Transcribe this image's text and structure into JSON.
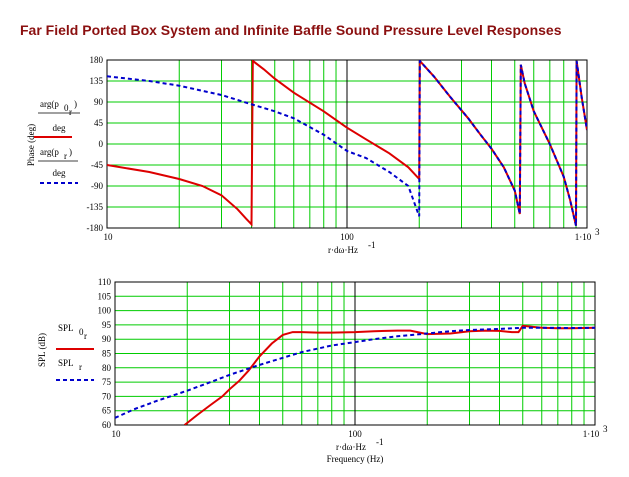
{
  "title": "Far Field Ported Box System and Infinite Baffle Sound Pressure Level Responses",
  "chart_data": [
    {
      "type": "line",
      "title": "Far Field Ported Box System and Infinite Baffle Sound Pressure Level Responses",
      "xscale": "log",
      "xlim": [
        10,
        1000
      ],
      "ylim": [
        -180,
        180
      ],
      "xtick_labels": [
        "10",
        "100",
        "1·10"
      ],
      "xtick_exponent": "3",
      "ytick_labels": [
        "180",
        "135",
        "90",
        "45",
        "0",
        "-45",
        "-90",
        "-135",
        "-180"
      ],
      "yticks": [
        180,
        135,
        90,
        45,
        0,
        -45,
        -90,
        -135,
        -180
      ],
      "ylabel": "Phase (deg)",
      "xlabel": "r·dω·Hz",
      "xlabel_exponent": "-1",
      "grid": true,
      "legend": {
        "entry1": {
          "num": "arg(p",
          "sub": "0",
          "subsub": "r",
          "num_close": ")",
          "den": "deg"
        },
        "entry2": {
          "num": "arg(p",
          "sub": "r",
          "num_close": ")",
          "den": "deg"
        }
      },
      "series": [
        {
          "label": "arg(p0r)/deg",
          "color": "#dd0000",
          "style": "solid",
          "x": [
            10,
            15,
            20,
            25,
            30,
            35,
            38,
            40,
            40.5,
            45,
            50,
            60,
            80,
            100,
            120,
            150,
            180,
            200,
            201,
            230,
            270,
            320,
            360,
            400,
            450,
            500,
            525,
            530,
            550,
            600,
            700,
            800,
            850,
            900,
            905,
            950,
            1000
          ],
          "y": [
            -45,
            -60,
            -75,
            -90,
            -110,
            -140,
            -160,
            -172,
            178,
            160,
            140,
            110,
            70,
            35,
            10,
            -20,
            -50,
            -75,
            178,
            145,
            100,
            55,
            20,
            -10,
            -50,
            -100,
            -150,
            170,
            130,
            70,
            0,
            -70,
            -120,
            -175,
            178,
            100,
            30
          ]
        },
        {
          "label": "arg(pr)/deg",
          "color": "#0000cc",
          "style": "dashed",
          "x": [
            10,
            15,
            20,
            30,
            40,
            50,
            60,
            80,
            100,
            120,
            150,
            180,
            200,
            201,
            230,
            270,
            320,
            360,
            400,
            450,
            500,
            525,
            530,
            550,
            600,
            700,
            800,
            850,
            900,
            905,
            950,
            1000
          ],
          "y": [
            145,
            135,
            125,
            105,
            85,
            70,
            55,
            20,
            -15,
            -30,
            -60,
            -90,
            -155,
            178,
            145,
            100,
            55,
            20,
            -10,
            -50,
            -100,
            -150,
            170,
            130,
            70,
            0,
            -70,
            -120,
            -175,
            178,
            100,
            30
          ]
        }
      ]
    },
    {
      "type": "line",
      "xscale": "log",
      "xlim": [
        10,
        1000
      ],
      "ylim": [
        60,
        110
      ],
      "xtick_labels": [
        "10",
        "100",
        "1·10"
      ],
      "xtick_exponent": "3",
      "ytick_labels": [
        "110",
        "105",
        "100",
        "95",
        "90",
        "85",
        "80",
        "75",
        "70",
        "65",
        "60"
      ],
      "yticks": [
        110,
        105,
        100,
        95,
        90,
        85,
        80,
        75,
        70,
        65,
        60
      ],
      "ylabel": "SPL (dB)",
      "xlabel": "r·dω·Hz",
      "xlabel_exponent": "-1",
      "xlabel2": "Frequency (Hz)",
      "grid": true,
      "legend": {
        "entry1": {
          "text": "SPL",
          "sub": "0",
          "subsub": "r"
        },
        "entry2": {
          "text": "SPL",
          "sub": "r"
        }
      },
      "series": [
        {
          "label": "SPL0r",
          "color": "#dd0000",
          "style": "solid",
          "x": [
            19.5,
            22,
            25,
            28,
            30,
            33,
            36,
            40,
            45,
            50,
            55,
            60,
            70,
            80,
            100,
            120,
            150,
            170,
            200,
            250,
            300,
            350,
            400,
            450,
            480,
            500,
            550,
            600,
            700,
            800,
            1000
          ],
          "y": [
            60,
            63.5,
            67,
            70,
            72.5,
            75.5,
            79,
            84,
            88.5,
            91.5,
            92.5,
            92.5,
            92.3,
            92.3,
            92.5,
            92.8,
            93,
            93,
            91.8,
            92,
            92.8,
            93,
            92.9,
            92.5,
            92.5,
            94.7,
            94.3,
            94,
            93.8,
            93.8,
            94
          ]
        },
        {
          "label": "SPLr",
          "color": "#0000cc",
          "style": "dashed",
          "x": [
            10,
            12,
            15,
            20,
            25,
            30,
            40,
            50,
            60,
            80,
            100,
            120,
            150,
            200,
            250,
            300,
            400,
            500,
            600,
            800,
            1000
          ],
          "y": [
            62.5,
            65.5,
            68.5,
            72,
            75,
            77.5,
            81,
            83.5,
            85.5,
            87.8,
            89,
            90,
            91,
            92,
            92.8,
            93.2,
            93.6,
            94,
            94,
            93.9,
            94
          ]
        }
      ]
    }
  ]
}
